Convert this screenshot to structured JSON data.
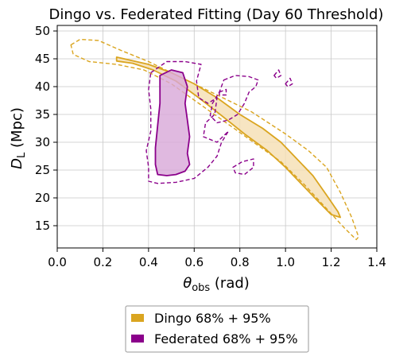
{
  "chart_data": {
    "type": "contour",
    "title": "Dingo vs. Federated Fitting (Day 60 Threshold)",
    "xlabel_symbol": "θ",
    "xlabel_sub": "obs",
    "xlabel_unit": " (rad)",
    "ylabel_symbol": "D",
    "ylabel_sub": "L",
    "ylabel_unit": " (Mpc)",
    "xlim": [
      0.0,
      1.4
    ],
    "ylim": [
      11,
      51
    ],
    "x_ticks": [
      0.0,
      0.2,
      0.4,
      0.6,
      0.8,
      1.0,
      1.2,
      1.4
    ],
    "x_tick_labels": [
      "0.0",
      "0.2",
      "0.4",
      "0.6",
      "0.8",
      "1.0",
      "1.2",
      "1.4"
    ],
    "y_ticks": [
      15,
      20,
      25,
      30,
      35,
      40,
      45,
      50
    ],
    "y_tick_labels": [
      "15",
      "20",
      "25",
      "30",
      "35",
      "40",
      "45",
      "50"
    ],
    "grid": true,
    "legend_position": "below",
    "legend": [
      {
        "label": "Dingo 68% + 95%",
        "color": "#DAA520"
      },
      {
        "label": "Federated 68% + 95%",
        "color": "#8B008B"
      }
    ],
    "series": [
      {
        "key": "dingo",
        "color": "#DAA520",
        "fill": "#F5DEB3",
        "contours": [
          {
            "level": "68%",
            "style": "filled",
            "points": [
              [
                0.26,
                45.3
              ],
              [
                0.4,
                44.0
              ],
              [
                0.5,
                42.5
              ],
              [
                0.6,
                40.5
              ],
              [
                0.7,
                38.0
              ],
              [
                0.8,
                35.0
              ],
              [
                0.9,
                32.5
              ],
              [
                0.98,
                30.0
              ],
              [
                1.05,
                27.0
              ],
              [
                1.12,
                24.0
              ],
              [
                1.18,
                20.5
              ],
              [
                1.23,
                17.5
              ],
              [
                1.24,
                16.5
              ],
              [
                1.2,
                17.0
              ],
              [
                1.14,
                19.5
              ],
              [
                1.07,
                22.5
              ],
              [
                1.0,
                25.5
              ],
              [
                0.92,
                28.5
              ],
              [
                0.82,
                31.5
              ],
              [
                0.72,
                34.8
              ],
              [
                0.62,
                38.0
              ],
              [
                0.52,
                41.0
              ],
              [
                0.42,
                43.0
              ],
              [
                0.33,
                44.2
              ],
              [
                0.26,
                44.6
              ]
            ]
          },
          {
            "level": "95%",
            "style": "dashed",
            "points": [
              [
                0.06,
                47.5
              ],
              [
                0.1,
                48.5
              ],
              [
                0.18,
                48.3
              ],
              [
                0.28,
                46.5
              ],
              [
                0.4,
                44.5
              ],
              [
                0.55,
                41.5
              ],
              [
                0.7,
                38.5
              ],
              [
                0.85,
                35.5
              ],
              [
                1.0,
                31.5
              ],
              [
                1.1,
                28.5
              ],
              [
                1.18,
                25.5
              ],
              [
                1.24,
                21.0
              ],
              [
                1.29,
                16.5
              ],
              [
                1.32,
                13.0
              ],
              [
                1.31,
                12.5
              ],
              [
                1.26,
                14.5
              ],
              [
                1.17,
                18.5
              ],
              [
                1.08,
                22.5
              ],
              [
                0.98,
                26.5
              ],
              [
                0.86,
                30.0
              ],
              [
                0.74,
                33.5
              ],
              [
                0.62,
                37.0
              ],
              [
                0.5,
                40.5
              ],
              [
                0.38,
                43.0
              ],
              [
                0.26,
                44.0
              ],
              [
                0.14,
                44.5
              ],
              [
                0.07,
                45.8
              ],
              [
                0.06,
                47.5
              ]
            ]
          }
        ]
      },
      {
        "key": "federated",
        "color": "#8B008B",
        "fill": "#D8A7D8",
        "contours": [
          {
            "level": "68%",
            "style": "filled",
            "points": [
              [
                0.45,
                42.0
              ],
              [
                0.5,
                43.0
              ],
              [
                0.55,
                42.5
              ],
              [
                0.57,
                40.0
              ],
              [
                0.56,
                37.0
              ],
              [
                0.57,
                34.0
              ],
              [
                0.58,
                31.0
              ],
              [
                0.57,
                28.0
              ],
              [
                0.58,
                26.0
              ],
              [
                0.56,
                24.8
              ],
              [
                0.52,
                24.2
              ],
              [
                0.48,
                24.0
              ],
              [
                0.44,
                24.2
              ],
              [
                0.43,
                26.0
              ],
              [
                0.43,
                29.0
              ],
              [
                0.44,
                33.0
              ],
              [
                0.45,
                37.0
              ],
              [
                0.45,
                40.0
              ],
              [
                0.45,
                42.0
              ]
            ]
          },
          {
            "level": "95%",
            "style": "dashed",
            "points": [
              [
                0.41,
                42.5
              ],
              [
                0.48,
                44.5
              ],
              [
                0.56,
                44.5
              ],
              [
                0.63,
                44.0
              ],
              [
                0.61,
                41.0
              ],
              [
                0.62,
                38.0
              ],
              [
                0.66,
                37.0
              ],
              [
                0.7,
                38.0
              ],
              [
                0.69,
                35.0
              ],
              [
                0.65,
                33.5
              ],
              [
                0.64,
                31.0
              ],
              [
                0.7,
                30.0
              ],
              [
                0.75,
                32.0
              ],
              [
                0.72,
                30.0
              ],
              [
                0.7,
                27.5
              ],
              [
                0.66,
                25.5
              ],
              [
                0.6,
                23.5
              ],
              [
                0.52,
                22.8
              ],
              [
                0.44,
                22.6
              ],
              [
                0.4,
                23.0
              ],
              [
                0.4,
                25.5
              ],
              [
                0.39,
                28.5
              ],
              [
                0.41,
                32.0
              ],
              [
                0.41,
                36.0
              ],
              [
                0.4,
                39.5
              ],
              [
                0.41,
                42.5
              ]
            ]
          },
          {
            "level": "95%",
            "style": "dashed",
            "points": [
              [
                0.73,
                41.2
              ],
              [
                0.78,
                42.0
              ],
              [
                0.84,
                41.8
              ],
              [
                0.88,
                41.2
              ],
              [
                0.87,
                40.0
              ],
              [
                0.84,
                39.0
              ],
              [
                0.82,
                37.0
              ],
              [
                0.79,
                35.0
              ],
              [
                0.75,
                34.0
              ],
              [
                0.7,
                33.5
              ],
              [
                0.67,
                34.8
              ],
              [
                0.68,
                37.0
              ],
              [
                0.71,
                39.0
              ],
              [
                0.73,
                41.2
              ]
            ]
          },
          {
            "level": "95%",
            "style": "dashed",
            "points": [
              [
                0.95,
                42.0
              ],
              [
                0.97,
                43.0
              ],
              [
                0.98,
                42.0
              ],
              [
                0.96,
                41.5
              ],
              [
                0.95,
                42.0
              ]
            ]
          },
          {
            "level": "95%",
            "style": "dashed",
            "points": [
              [
                1.0,
                40.5
              ],
              [
                1.02,
                41.5
              ],
              [
                1.03,
                40.5
              ],
              [
                1.01,
                40.0
              ],
              [
                1.0,
                40.5
              ]
            ]
          },
          {
            "level": "95%",
            "style": "dashed",
            "points": [
              [
                0.77,
                25.5
              ],
              [
                0.81,
                26.5
              ],
              [
                0.86,
                27.0
              ],
              [
                0.86,
                25.5
              ],
              [
                0.82,
                24.2
              ],
              [
                0.78,
                24.5
              ],
              [
                0.77,
                25.5
              ]
            ]
          },
          {
            "level": "95%",
            "style": "dashed",
            "points": [
              [
                0.71,
                39.0
              ],
              [
                0.74,
                39.5
              ],
              [
                0.74,
                38.5
              ],
              [
                0.71,
                38.5
              ],
              [
                0.71,
                39.0
              ]
            ]
          }
        ]
      }
    ]
  }
}
